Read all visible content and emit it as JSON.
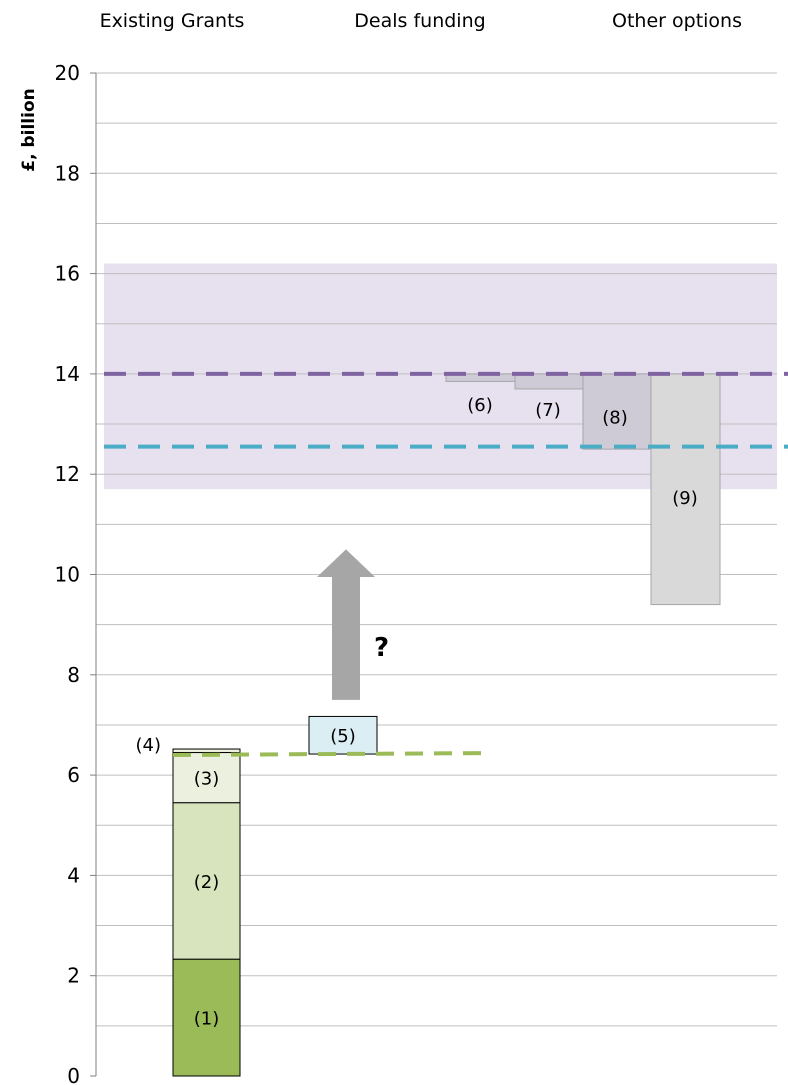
{
  "chart_data": {
    "type": "bar",
    "title": "",
    "ylabel": "£, billion",
    "xlabel": "",
    "ylim": [
      0,
      20
    ],
    "yticks": [
      0,
      2,
      4,
      6,
      8,
      10,
      12,
      14,
      16,
      18,
      20
    ],
    "grid": "horizontal, every 1",
    "categories": [
      "Existing Grants",
      "Deals funding",
      "Other options"
    ],
    "colors": {
      "seg1": "#9bbb59",
      "seg2": "#d7e4bd",
      "seg3": "#ebf1de",
      "seg5": "#dbeef4",
      "grey_light": "#d9d9d9",
      "grey_mid": "#cfcbd6",
      "band": "#e6e0ef",
      "purple_line": "#8064a2",
      "teal_line": "#4bacc6",
      "green_line": "#9bbb59",
      "arrow": "#a6a6a6",
      "grid": "#bfbfbf"
    },
    "reference_band": [
      11.7,
      16.2
    ],
    "reference_lines": [
      {
        "value": 14.0,
        "color": "purple_line",
        "style": "dashed"
      },
      {
        "value": 12.55,
        "color": "teal_line",
        "style": "dashed"
      },
      {
        "value": 6.42,
        "color": "green_line",
        "style": "dashed",
        "span": "Existing Grants to Deals funding"
      }
    ],
    "stack_existing_grants": [
      {
        "label": "(1)",
        "from": 0.0,
        "to": 2.33,
        "color": "seg1"
      },
      {
        "label": "(2)",
        "from": 2.33,
        "to": 5.45,
        "color": "seg2"
      },
      {
        "label": "(3)",
        "from": 5.45,
        "to": 6.45,
        "color": "seg3"
      },
      {
        "label": "(4)",
        "from": 6.45,
        "to": 6.52,
        "color": "seg3"
      }
    ],
    "deals_funding": {
      "label": "(5)",
      "from": 6.42,
      "to": 7.17,
      "color": "seg5",
      "arrow": {
        "from": 7.5,
        "to": 10.5,
        "label": "?"
      }
    },
    "other_options": [
      {
        "label": "(6)",
        "from": 13.85,
        "to": 14.0,
        "color": "grey_mid"
      },
      {
        "label": "(7)",
        "from": 13.7,
        "to": 14.0,
        "color": "grey_mid"
      },
      {
        "label": "(8)",
        "from": 12.5,
        "to": 14.0,
        "color": "grey_mid"
      },
      {
        "label": "(9)",
        "from": 9.4,
        "to": 14.0,
        "color": "grey_light"
      }
    ]
  }
}
